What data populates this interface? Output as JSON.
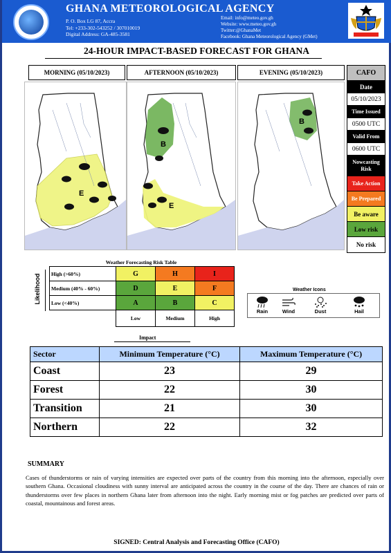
{
  "header": {
    "agency": "GHANA METEOROLOGICAL AGENCY",
    "logo_text": "GHANA METEOROLOGICAL AGENCY",
    "address_lines": [
      "P. O. Box LG 87, Accra",
      "Tel: +233-302-543252 / 307010019",
      "Digital Address: GA-485-3581"
    ],
    "contact_lines": [
      "Email: info@meteo.gov.gh",
      "Website: www.meteo.gov.gh",
      "Twitter:@GhanaMet",
      "Facebook: Ghana Meteorological Agency (GMet)"
    ]
  },
  "title": "24-HOUR IMPACT-BASED FORECAST FOR GHANA",
  "panels": [
    {
      "label": "MORNING (05/10/2023)",
      "zone_letter": "E"
    },
    {
      "label": "AFTERNOON (05/10/2023)",
      "zone_letters": [
        "B",
        "E"
      ]
    },
    {
      "label": "EVENING (05/10/2023)",
      "zone_letter": "B"
    }
  ],
  "cafo": {
    "heading": "CAFO",
    "date_label": "Date",
    "date_value": "05/10/2023",
    "issued_label": "Time Issued",
    "issued_value": "0500 UTC",
    "valid_label": "Valid From",
    "valid_value": "0600 UTC",
    "nowcasting_label": "Nowcasting Risk",
    "risks": [
      {
        "label": "Take Action",
        "color": "#e8231b",
        "text_color": "#ffffff"
      },
      {
        "label": "Be Prepared",
        "color": "#f47a20",
        "text_color": "#ffffff"
      },
      {
        "label": "Be aware",
        "color": "#f1f163",
        "text_color": "#000000"
      },
      {
        "label": "Low risk",
        "color": "#5aa63c",
        "text_color": "#000000"
      },
      {
        "label": "No risk",
        "color": "#ffffff",
        "text_color": "#000000"
      }
    ]
  },
  "risk_table": {
    "title": "Weather Forecasting Risk Table",
    "likelihood_label": "Likelihood",
    "impact_label": "Impact",
    "rows": [
      {
        "label": "High (>60%)",
        "cells": [
          "G",
          "H",
          "I"
        ]
      },
      {
        "label": "Medium (40% - 60%)",
        "cells": [
          "D",
          "E",
          "F"
        ]
      },
      {
        "label": "Low (<40%)",
        "cells": [
          "A",
          "B",
          "C"
        ]
      }
    ],
    "columns": [
      "Low",
      "Medium",
      "High"
    ],
    "colors": {
      "G": "#f1f163",
      "H": "#f47a20",
      "I": "#e8231b",
      "D": "#5aa63c",
      "E": "#f1f163",
      "F": "#f47a20",
      "A": "#5aa63c",
      "B": "#5aa63c",
      "C": "#f1f163"
    }
  },
  "weather_icons": {
    "title": "Weather Icons",
    "items": [
      {
        "label": "Rain",
        "icon": "rain-cloud-icon"
      },
      {
        "label": "Wind",
        "icon": "wind-icon"
      },
      {
        "label": "Dust",
        "icon": "dust-icon"
      },
      {
        "label": "Hail",
        "icon": "hail-icon"
      }
    ]
  },
  "temperature_table": {
    "headers": [
      "Sector",
      "Minimum Temperature (°C)",
      "Maximum Temperature (°C)"
    ],
    "rows": [
      {
        "sector": "Coast",
        "min": "23",
        "max": "29"
      },
      {
        "sector": "Forest",
        "min": "22",
        "max": "30"
      },
      {
        "sector": "Transition",
        "min": "21",
        "max": "30"
      },
      {
        "sector": "Northern",
        "min": "22",
        "max": "32"
      }
    ]
  },
  "summary": {
    "heading": "SUMMARY",
    "text": "Cases of thunderstorms or rain of varying intensities are expected over parts of the country from this morning into the afternoon, especially over southern Ghana. Occasional cloudiness with sunny interval are anticipated across the country in the course of the day. There are chances of rain or thunderstorms over few places in northern Ghana later from afternoon into the night. Early morning mist or fog patches are predicted over parts of coastal, mountainous and forest areas."
  },
  "signed": "SIGNED: Central Analysis and Forecasting Office (CAFO)"
}
